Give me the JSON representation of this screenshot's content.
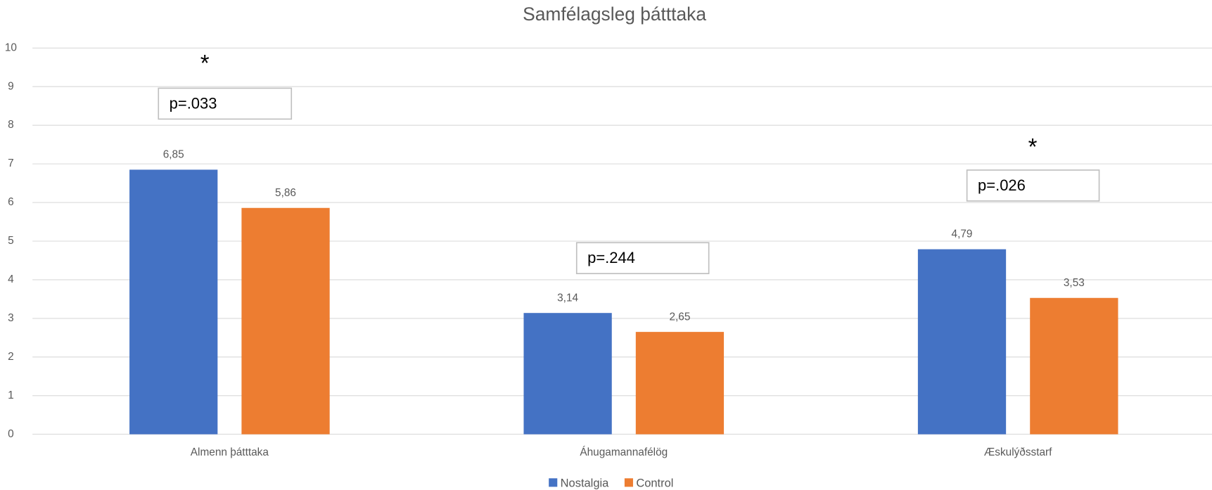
{
  "chart_data": {
    "type": "bar",
    "title": "Samfélagsleg þátttaka",
    "categories": [
      "Almenn þátttaka",
      "Áhugamannafélög",
      "Æskulýðsstarf"
    ],
    "series": [
      {
        "name": "Nostalgia",
        "color": "#4472c4",
        "values": [
          6.85,
          3.14,
          4.79
        ],
        "value_labels": [
          "6,85",
          "3,14",
          "4,79"
        ]
      },
      {
        "name": "Control",
        "color": "#ed7d31",
        "values": [
          5.86,
          2.65,
          3.53
        ],
        "value_labels": [
          "5,86",
          "2,65",
          "3,53"
        ]
      }
    ],
    "ylim": [
      0,
      10
    ],
    "yticks": [
      0,
      1,
      2,
      3,
      4,
      5,
      6,
      7,
      8,
      9,
      10
    ],
    "grid": true,
    "legend": "bottom",
    "annotations": [
      "*",
      "p=.033",
      "p=.244",
      "*",
      "p=.026"
    ]
  }
}
